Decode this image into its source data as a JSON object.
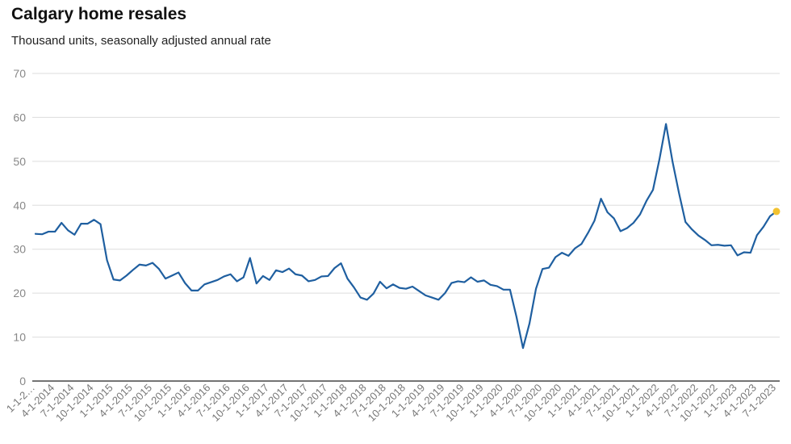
{
  "chart_data": {
    "type": "line",
    "title": "Calgary home resales",
    "subtitle": "Thousand units, seasonally adjusted annual rate",
    "xlabel": "",
    "ylabel": "",
    "ylim": [
      0,
      70
    ],
    "yticks": [
      0,
      10,
      20,
      30,
      40,
      50,
      60,
      70
    ],
    "grid": true,
    "colors": {
      "line": "#1f5fa0",
      "last_point": "#f2c230",
      "grid": "#dddddd",
      "axis": "#222222"
    },
    "xtick_labels": [
      "1-1-2…",
      "4-1-2014",
      "7-1-2014",
      "10-1-2014",
      "1-1-2015",
      "4-1-2015",
      "7-1-2015",
      "10-1-2015",
      "1-1-2016",
      "4-1-2016",
      "7-1-2016",
      "10-1-2016",
      "1-1-2017",
      "4-1-2017",
      "7-1-2017",
      "10-1-2017",
      "1-1-2018",
      "4-1-2018",
      "7-1-2018",
      "10-1-2018",
      "1-1-2019",
      "4-1-2019",
      "7-1-2019",
      "10-1-2019",
      "1-1-2020",
      "4-1-2020",
      "7-1-2020",
      "10-1-2020",
      "1-1-2021",
      "4-1-2021",
      "7-1-2021",
      "10-1-2021",
      "1-1-2022",
      "4-1-2022",
      "7-1-2022",
      "10-1-2022",
      "1-1-2023",
      "4-1-2023",
      "7-1-2023"
    ],
    "series": [
      {
        "start": "2014-01",
        "frequency": "monthly",
        "values": [
          33.5,
          33.4,
          34.0,
          34.0,
          36.0,
          34.3,
          33.3,
          35.8,
          35.8,
          36.7,
          35.7,
          27.5,
          23.1,
          22.9,
          24.0,
          25.3,
          26.5,
          26.3,
          26.9,
          25.5,
          23.3,
          24.0,
          24.7,
          22.3,
          20.6,
          20.6,
          22.0,
          22.5,
          23.0,
          23.8,
          24.3,
          22.7,
          23.6,
          28.0,
          22.2,
          23.9,
          23.0,
          25.2,
          24.8,
          25.6,
          24.3,
          24.0,
          22.7,
          23.0,
          23.8,
          23.9,
          25.7,
          26.8,
          23.3,
          21.3,
          19.0,
          18.5,
          19.9,
          22.6,
          21.1,
          22.0,
          21.2,
          21.0,
          21.5,
          20.5,
          19.5,
          19.0,
          18.5,
          20.0,
          22.3,
          22.7,
          22.5,
          23.6,
          22.6,
          22.9,
          21.9,
          21.6,
          20.8,
          20.8,
          14.6,
          7.5,
          13.1,
          21.0,
          25.5,
          25.8,
          28.2,
          29.2,
          28.5,
          30.2,
          31.2,
          33.7,
          36.5,
          41.5,
          38.4,
          37.0,
          34.1,
          34.8,
          36.0,
          37.9,
          41.0,
          43.5,
          50.5,
          58.5,
          50.0,
          42.8,
          36.2,
          34.5,
          33.1,
          32.1,
          30.9,
          31.0,
          30.8,
          30.9,
          28.6,
          29.3,
          29.2,
          33.2,
          35.1,
          37.5,
          38.6
        ]
      }
    ]
  }
}
